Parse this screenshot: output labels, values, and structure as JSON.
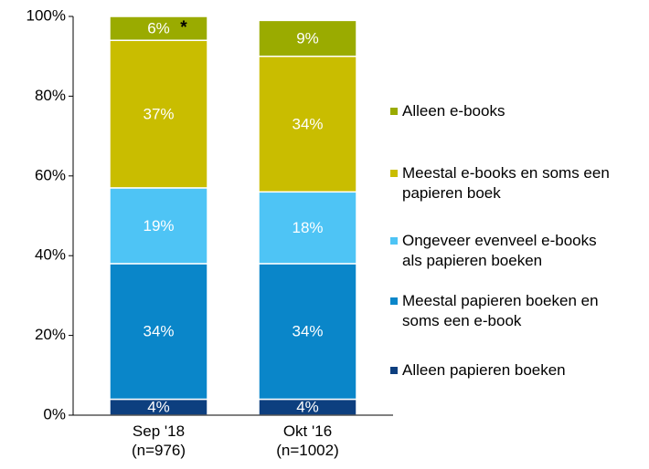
{
  "chart_data": {
    "type": "stacked_bar",
    "categories": [
      "Sep '18\n(n=976)",
      "Okt '16\n(n=1002)"
    ],
    "series": [
      {
        "name": "Alleen papieren boeken",
        "color": "#0d3f7f",
        "values": [
          4,
          4
        ],
        "value_labels": [
          "4%",
          "4%"
        ]
      },
      {
        "name": "Meestal papieren boeken en soms een e-book",
        "color": "#0a86c9",
        "values": [
          34,
          34
        ],
        "value_labels": [
          "34%",
          "34%"
        ]
      },
      {
        "name": "Ongeveer evenveel e-books als papieren boeken",
        "color": "#4ec4f5",
        "values": [
          19,
          18
        ],
        "value_labels": [
          "19%",
          "18%"
        ]
      },
      {
        "name": "Meestal e-books en soms een papieren boek",
        "color": "#c9bd00",
        "values": [
          37,
          34
        ],
        "value_labels": [
          "37%",
          "34%"
        ]
      },
      {
        "name": "Alleen e-books",
        "color": "#9aab00",
        "values": [
          6,
          9
        ],
        "value_labels": [
          "6%",
          "9%"
        ]
      }
    ],
    "annotations": [
      "*"
    ],
    "ylim": [
      0,
      100
    ],
    "yticks": [
      {
        "value": 0,
        "label": "0%"
      },
      {
        "value": 20,
        "label": "20%"
      },
      {
        "value": 40,
        "label": "40%"
      },
      {
        "value": 60,
        "label": "60%"
      },
      {
        "value": 80,
        "label": "80%"
      },
      {
        "value": 100,
        "label": "100%"
      }
    ],
    "legend": "right"
  }
}
